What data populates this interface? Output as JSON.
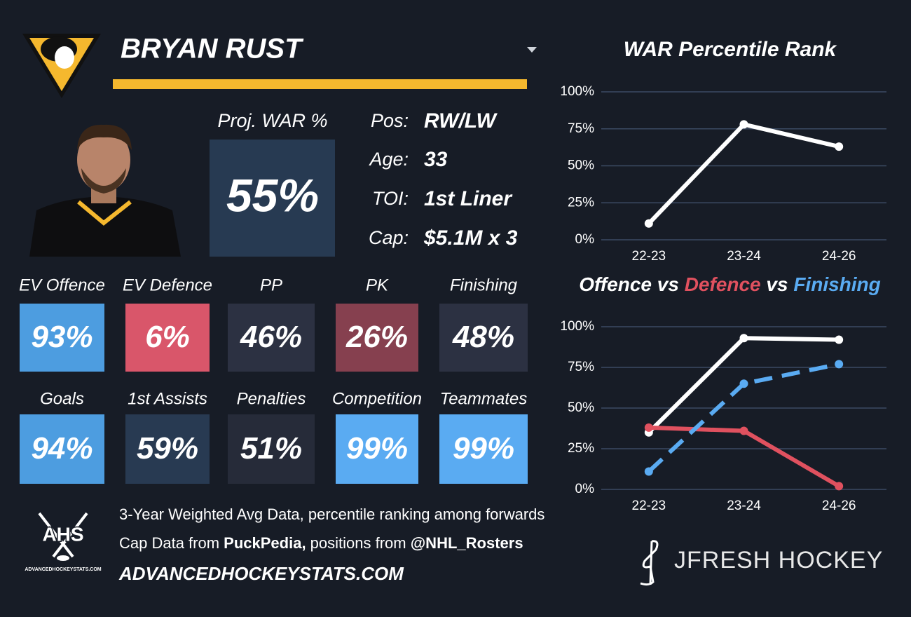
{
  "header": {
    "name": "BRYAN RUST",
    "proj_label": "Proj. WAR %",
    "proj_value": "55%"
  },
  "info": [
    {
      "label": "Pos:",
      "value": "RW/LW"
    },
    {
      "label": "Age:",
      "value": "33"
    },
    {
      "label": "TOI:",
      "value": "1st Liner"
    },
    {
      "label": "Cap:",
      "value": "$5.1M x 3"
    }
  ],
  "tiles": [
    {
      "label": "EV Offence",
      "value": "93%",
      "color": "#4d9de0"
    },
    {
      "label": "EV Defence",
      "value": "6%",
      "color": "#d9566a"
    },
    {
      "label": "PP",
      "value": "46%",
      "color": "#2c3142"
    },
    {
      "label": "PK",
      "value": "26%",
      "color": "#86404f"
    },
    {
      "label": "Finishing",
      "value": "48%",
      "color": "#2c3142"
    },
    {
      "label": "Goals",
      "value": "94%",
      "color": "#4d9de0"
    },
    {
      "label": "1st Assists",
      "value": "59%",
      "color": "#283a52"
    },
    {
      "label": "Penalties",
      "value": "51%",
      "color": "#262b39"
    },
    {
      "label": "Competition",
      "value": "99%",
      "color": "#5aabf2"
    },
    {
      "label": "Teammates",
      "value": "99%",
      "color": "#5aabf2"
    }
  ],
  "footer": {
    "line1": "3-Year Weighted Avg Data, percentile ranking among forwards",
    "line2": [
      {
        "text": "Cap Data from ",
        "bold": false
      },
      {
        "text": "PuckPedia,",
        "bold": true
      },
      {
        "text": " positions from ",
        "bold": false
      },
      {
        "text": "@NHL_Rosters",
        "bold": true
      }
    ],
    "site": "ADVANCEDHOCKEYSTATS.COM"
  },
  "logos": {
    "ahs": "AHS",
    "ahs_url": "ADVANCEDHOCKEYSTATS.COM",
    "jfresh": "JFRESH HOCKEY"
  },
  "chart_data": [
    {
      "type": "line",
      "title": "WAR Percentile Rank",
      "categories": [
        "22-23",
        "23-24",
        "24-26"
      ],
      "series": [
        {
          "color": "#ffffff",
          "values": [
            11,
            78,
            63
          ]
        }
      ],
      "ylim": [
        0,
        100
      ],
      "yticks": [
        {
          "value": 0,
          "label": "0%"
        },
        {
          "value": 25,
          "label": "25%"
        },
        {
          "value": 50,
          "label": "50%"
        },
        {
          "value": 75,
          "label": "75%"
        },
        {
          "value": 100,
          "label": "100%"
        }
      ],
      "grid": true
    },
    {
      "type": "line",
      "title_parts": [
        {
          "text": "Offence",
          "color": "#ffffff"
        },
        {
          "text": " vs ",
          "color": "#ffffff"
        },
        {
          "text": "Defence",
          "color": "#e0515f"
        },
        {
          "text": " vs ",
          "color": "#ffffff"
        },
        {
          "text": "Finishing",
          "color": "#5aabf2"
        }
      ],
      "categories": [
        "22-23",
        "23-24",
        "24-26"
      ],
      "series": [
        {
          "color": "#ffffff",
          "values": [
            35,
            93,
            92
          ]
        },
        {
          "color": "#e0515f",
          "values": [
            38,
            36,
            2
          ]
        },
        {
          "color": "#5aabf2",
          "values": [
            11,
            65,
            77
          ],
          "line_style": "dashed"
        }
      ],
      "ylim": [
        0,
        100
      ],
      "yticks": [
        {
          "value": 0,
          "label": "0%"
        },
        {
          "value": 25,
          "label": "25%"
        },
        {
          "value": 50,
          "label": "50%"
        },
        {
          "value": 75,
          "label": "75%"
        },
        {
          "value": 100,
          "label": "100%"
        }
      ],
      "grid": true
    }
  ]
}
